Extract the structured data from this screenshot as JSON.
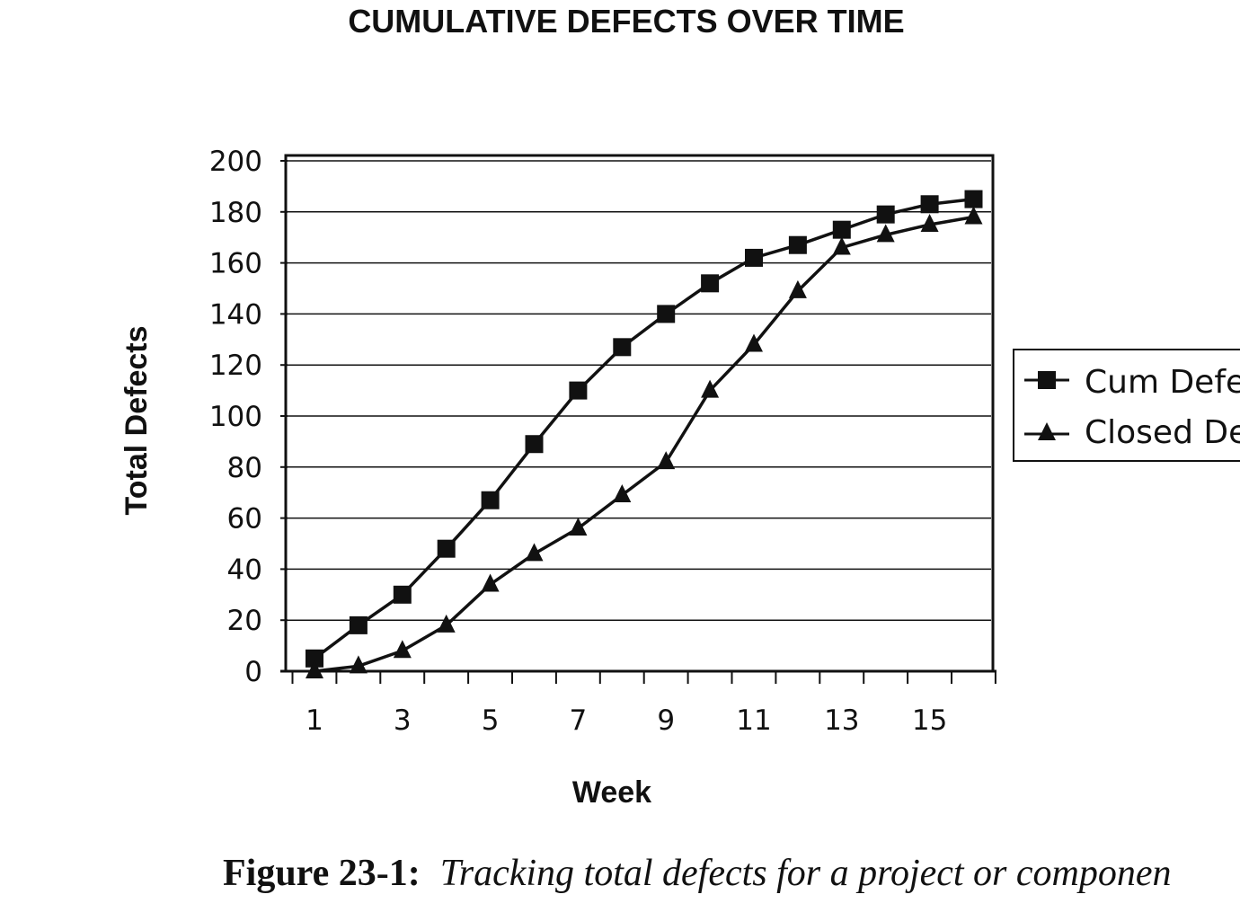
{
  "chart_data": {
    "type": "line",
    "title": "CUMULATIVE DEFECTS OVER TIME",
    "xlabel": "Week",
    "ylabel": "Total Defects",
    "x": [
      1,
      2,
      3,
      4,
      5,
      6,
      7,
      8,
      9,
      10,
      11,
      12,
      13,
      14,
      15,
      16
    ],
    "x_tick_labels": [
      "1",
      "3",
      "5",
      "7",
      "9",
      "11",
      "13",
      "15"
    ],
    "x_tick_values": [
      1,
      3,
      5,
      7,
      9,
      11,
      13,
      15
    ],
    "ylim": [
      0,
      200
    ],
    "y_ticks": [
      0,
      20,
      40,
      60,
      80,
      100,
      120,
      140,
      160,
      180,
      200
    ],
    "grid": "horizontal",
    "legend_position": "right",
    "series": [
      {
        "name": "Cum Defe",
        "marker": "square",
        "values": [
          5,
          18,
          30,
          48,
          67,
          89,
          110,
          127,
          140,
          152,
          162,
          167,
          173,
          179,
          183,
          185
        ]
      },
      {
        "name": "Closed De",
        "marker": "triangle",
        "values": [
          0,
          2,
          8,
          18,
          34,
          46,
          56,
          69,
          82,
          110,
          128,
          149,
          166,
          171,
          175,
          178
        ]
      }
    ]
  },
  "caption": {
    "label": "Figure 23-1:",
    "text": "Tracking total defects for a project or componen"
  }
}
